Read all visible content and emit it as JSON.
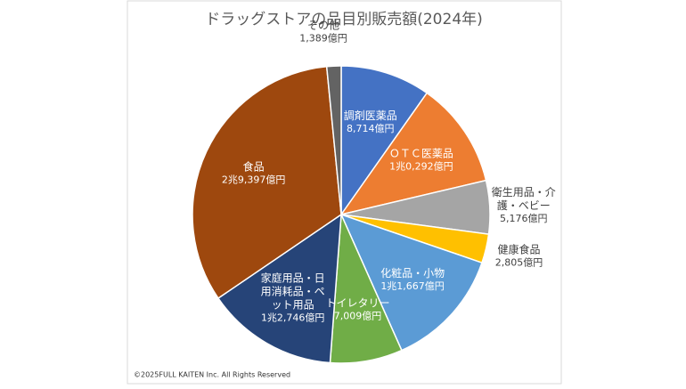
{
  "chart_data": {
    "type": "pie",
    "title": "ドラッグストアの品目別販売額(2024年)",
    "categories": [
      "調剤医薬品",
      "ＯＴＣ医薬品",
      "衛生用品・介護・ベビー",
      "健康食品",
      "化粧品・小物",
      "トイレタリー",
      "家庭用品・日用消耗品・ペット用品",
      "食品",
      "その他"
    ],
    "values": [
      8714,
      10292,
      5176,
      2805,
      11667,
      7009,
      12746,
      29397,
      1389
    ],
    "value_labels": [
      "8,714億円",
      "1兆0,292億円",
      "5,176億円",
      "2,805億円",
      "1兆1,667億円",
      "7,009億円",
      "1兆2,746億円",
      "2兆9,397億円",
      "1,389億円"
    ],
    "colors": [
      "#4472c4",
      "#ed7d31",
      "#a5a5a5",
      "#ffc000",
      "#5b9bd5",
      "#70ad47",
      "#264478",
      "#9e480e",
      "#636363"
    ],
    "note": "©2025FULL KAITEN Inc. All Rights Reserved"
  }
}
